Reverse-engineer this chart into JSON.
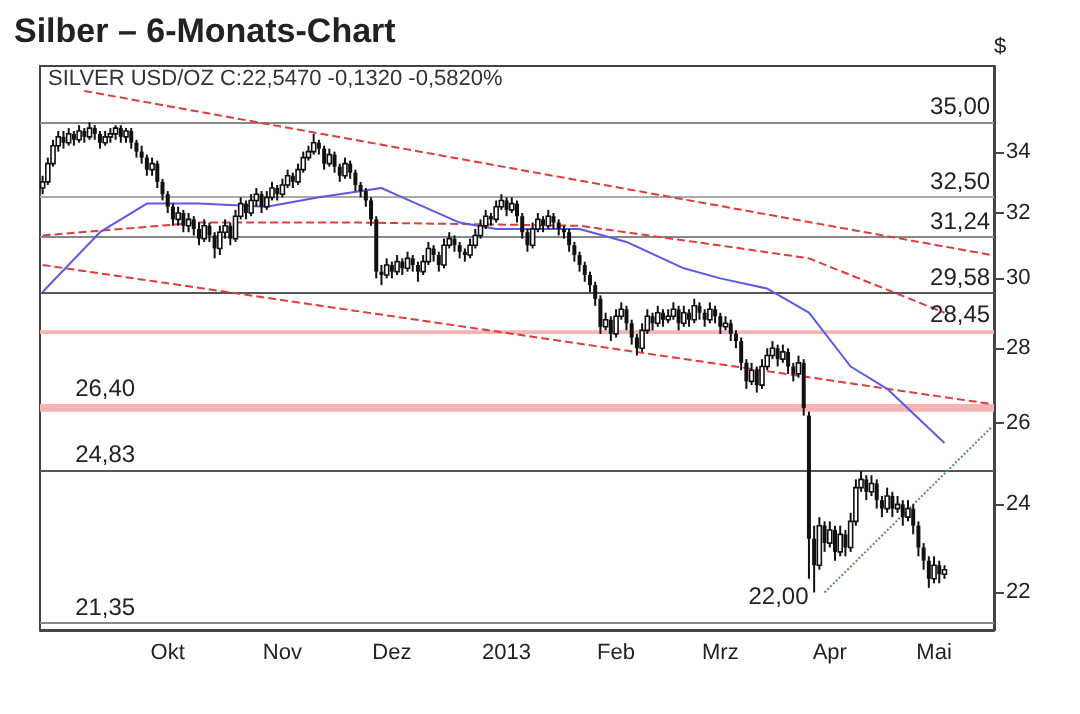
{
  "chart_data": {
    "type": "candlestick",
    "title": "Silber – 6-Monats-Chart",
    "subtitle": "SILVER USD/OZ C:22,5470 -0,1320 -0,5820%",
    "ylabel": "$",
    "color": "#111111",
    "log": true,
    "grid": false,
    "ylim": [
      21.2,
      37
    ],
    "yticks": [
      22,
      24,
      26,
      28,
      30,
      32,
      34
    ],
    "categories": [
      null,
      null,
      null,
      null,
      null,
      null,
      null,
      null,
      null,
      null,
      null,
      null,
      null,
      null,
      null,
      null,
      null,
      null,
      null,
      null,
      null,
      null,
      null,
      null,
      "Okt",
      null,
      null,
      null,
      null,
      null,
      null,
      null,
      null,
      null,
      null,
      null,
      null,
      null,
      null,
      null,
      null,
      null,
      null,
      null,
      null,
      null,
      "Nov",
      null,
      null,
      null,
      null,
      null,
      null,
      null,
      null,
      null,
      null,
      null,
      null,
      null,
      null,
      null,
      null,
      null,
      null,
      null,
      null,
      "Dez",
      null,
      null,
      null,
      null,
      null,
      null,
      null,
      null,
      null,
      null,
      null,
      null,
      null,
      null,
      null,
      null,
      null,
      null,
      null,
      null,
      null,
      "2013",
      null,
      null,
      null,
      null,
      null,
      null,
      null,
      null,
      null,
      null,
      null,
      null,
      null,
      null,
      null,
      null,
      null,
      null,
      null,
      null,
      "Feb",
      null,
      null,
      null,
      null,
      null,
      null,
      null,
      null,
      null,
      null,
      null,
      null,
      null,
      null,
      null,
      null,
      null,
      null,
      null,
      "Mrz",
      null,
      null,
      null,
      null,
      null,
      null,
      null,
      null,
      null,
      null,
      null,
      null,
      null,
      null,
      null,
      null,
      null,
      null,
      null,
      null,
      "Apr",
      null,
      null,
      null,
      null,
      null,
      null,
      null,
      null,
      null,
      null,
      null,
      null,
      null,
      null,
      null,
      null,
      null,
      null,
      null,
      "Mai",
      null,
      null,
      null,
      null,
      null,
      null,
      null,
      null,
      null,
      null,
      null
    ],
    "ohlc": [
      [
        32.8,
        33.2,
        32.6,
        33.0
      ],
      [
        33.0,
        33.8,
        32.9,
        33.6
      ],
      [
        33.6,
        34.4,
        33.5,
        34.2
      ],
      [
        34.2,
        34.7,
        34.0,
        34.5
      ],
      [
        34.5,
        34.7,
        34.1,
        34.3
      ],
      [
        34.3,
        34.8,
        34.2,
        34.6
      ],
      [
        34.6,
        34.7,
        34.2,
        34.4
      ],
      [
        34.4,
        34.9,
        34.3,
        34.7
      ],
      [
        34.7,
        34.8,
        34.3,
        34.5
      ],
      [
        34.5,
        35.0,
        34.4,
        34.8
      ],
      [
        34.8,
        34.9,
        34.4,
        34.6
      ],
      [
        34.6,
        34.7,
        34.1,
        34.3
      ],
      [
        34.3,
        34.7,
        34.2,
        34.5
      ],
      [
        34.5,
        34.8,
        34.3,
        34.6
      ],
      [
        34.6,
        34.9,
        34.4,
        34.8
      ],
      [
        34.8,
        34.9,
        34.3,
        34.5
      ],
      [
        34.5,
        34.8,
        34.3,
        34.7
      ],
      [
        34.7,
        34.8,
        34.1,
        34.3
      ],
      [
        34.3,
        34.4,
        33.8,
        34.0
      ],
      [
        34.0,
        34.2,
        33.6,
        33.8
      ],
      [
        33.8,
        33.9,
        33.2,
        33.4
      ],
      [
        33.4,
        33.8,
        33.2,
        33.6
      ],
      [
        33.6,
        33.7,
        32.8,
        33.0
      ],
      [
        33.0,
        33.1,
        32.4,
        32.6
      ],
      [
        32.6,
        32.7,
        32.0,
        32.2
      ],
      [
        32.2,
        32.3,
        31.6,
        31.8
      ],
      [
        31.8,
        32.2,
        31.6,
        32.0
      ],
      [
        32.0,
        32.1,
        31.4,
        31.6
      ],
      [
        31.6,
        32.0,
        31.4,
        31.8
      ],
      [
        31.8,
        31.9,
        31.3,
        31.5
      ],
      [
        31.5,
        31.7,
        31.0,
        31.2
      ],
      [
        31.2,
        31.8,
        31.1,
        31.6
      ],
      [
        31.6,
        31.7,
        31.1,
        31.3
      ],
      [
        31.3,
        31.4,
        30.6,
        30.9
      ],
      [
        30.9,
        31.6,
        30.7,
        31.4
      ],
      [
        31.4,
        31.8,
        31.2,
        31.6
      ],
      [
        31.6,
        31.7,
        31.0,
        31.2
      ],
      [
        31.2,
        32.1,
        31.1,
        31.9
      ],
      [
        31.9,
        32.5,
        31.8,
        32.3
      ],
      [
        32.3,
        32.4,
        31.8,
        32.0
      ],
      [
        32.0,
        32.6,
        31.9,
        32.4
      ],
      [
        32.4,
        32.8,
        32.2,
        32.6
      ],
      [
        32.6,
        32.7,
        32.0,
        32.2
      ],
      [
        32.2,
        32.7,
        32.1,
        32.5
      ],
      [
        32.5,
        33.0,
        32.4,
        32.8
      ],
      [
        32.8,
        32.9,
        32.4,
        32.6
      ],
      [
        32.6,
        33.1,
        32.5,
        32.9
      ],
      [
        32.9,
        33.4,
        32.8,
        33.2
      ],
      [
        33.2,
        33.3,
        32.8,
        33.0
      ],
      [
        33.0,
        33.6,
        32.9,
        33.4
      ],
      [
        33.4,
        34.0,
        33.3,
        33.8
      ],
      [
        33.8,
        34.2,
        33.7,
        34.0
      ],
      [
        34.0,
        34.6,
        33.9,
        34.3
      ],
      [
        34.3,
        34.4,
        33.9,
        34.1
      ],
      [
        34.1,
        34.2,
        33.4,
        33.6
      ],
      [
        33.6,
        34.1,
        33.5,
        33.9
      ],
      [
        33.9,
        34.0,
        33.3,
        33.5
      ],
      [
        33.5,
        33.6,
        33.0,
        33.2
      ],
      [
        33.2,
        33.8,
        33.1,
        33.6
      ],
      [
        33.6,
        33.7,
        33.1,
        33.3
      ],
      [
        33.3,
        33.4,
        32.7,
        32.9
      ],
      [
        32.9,
        33.0,
        32.5,
        32.7
      ],
      [
        32.7,
        32.8,
        32.2,
        32.4
      ],
      [
        32.4,
        32.5,
        31.6,
        31.8
      ],
      [
        31.8,
        31.9,
        30.0,
        30.2
      ],
      [
        30.2,
        30.4,
        29.8,
        30.1
      ],
      [
        30.1,
        30.6,
        30.0,
        30.4
      ],
      [
        30.4,
        30.5,
        30.0,
        30.2
      ],
      [
        30.2,
        30.7,
        30.1,
        30.5
      ],
      [
        30.5,
        30.6,
        30.1,
        30.3
      ],
      [
        30.3,
        30.8,
        30.2,
        30.6
      ],
      [
        30.6,
        30.7,
        30.2,
        30.4
      ],
      [
        30.4,
        30.5,
        29.9,
        30.2
      ],
      [
        30.2,
        30.7,
        30.1,
        30.5
      ],
      [
        30.5,
        31.1,
        30.4,
        30.9
      ],
      [
        30.9,
        31.0,
        30.5,
        30.7
      ],
      [
        30.7,
        30.8,
        30.2,
        30.4
      ],
      [
        30.4,
        31.2,
        30.3,
        31.0
      ],
      [
        31.0,
        31.4,
        30.9,
        31.2
      ],
      [
        31.2,
        31.3,
        30.8,
        31.0
      ],
      [
        31.0,
        31.1,
        30.6,
        30.8
      ],
      [
        30.8,
        30.9,
        30.5,
        30.7
      ],
      [
        30.7,
        31.2,
        30.6,
        31.0
      ],
      [
        31.0,
        31.5,
        30.9,
        31.3
      ],
      [
        31.3,
        31.8,
        31.2,
        31.6
      ],
      [
        31.6,
        32.1,
        31.5,
        31.9
      ],
      [
        31.9,
        32.0,
        31.6,
        31.8
      ],
      [
        31.8,
        32.4,
        31.7,
        32.2
      ],
      [
        32.2,
        32.6,
        32.1,
        32.4
      ],
      [
        32.4,
        32.5,
        31.9,
        32.1
      ],
      [
        32.1,
        32.5,
        32.0,
        32.3
      ],
      [
        32.3,
        32.4,
        31.7,
        31.9
      ],
      [
        31.9,
        32.0,
        31.2,
        31.4
      ],
      [
        31.4,
        31.5,
        30.8,
        31.0
      ],
      [
        31.0,
        31.7,
        30.9,
        31.5
      ],
      [
        31.5,
        32.0,
        31.4,
        31.8
      ],
      [
        31.8,
        31.9,
        31.4,
        31.6
      ],
      [
        31.6,
        32.1,
        31.5,
        31.9
      ],
      [
        31.9,
        32.0,
        31.5,
        31.7
      ],
      [
        31.7,
        31.8,
        31.3,
        31.5
      ],
      [
        31.5,
        31.6,
        31.2,
        31.4
      ],
      [
        31.4,
        31.5,
        30.8,
        31.0
      ],
      [
        31.0,
        31.1,
        30.5,
        30.7
      ],
      [
        30.7,
        30.8,
        30.2,
        30.4
      ],
      [
        30.4,
        30.5,
        29.9,
        30.1
      ],
      [
        30.1,
        30.2,
        29.6,
        29.8
      ],
      [
        29.8,
        29.9,
        29.2,
        29.4
      ],
      [
        29.4,
        29.5,
        28.4,
        28.6
      ],
      [
        28.6,
        29.0,
        28.5,
        28.8
      ],
      [
        28.8,
        28.9,
        28.2,
        28.4
      ],
      [
        28.4,
        29.1,
        28.3,
        28.9
      ],
      [
        28.9,
        29.3,
        28.8,
        29.1
      ],
      [
        29.1,
        29.2,
        28.5,
        28.7
      ],
      [
        28.7,
        28.8,
        28.1,
        28.3
      ],
      [
        28.3,
        28.4,
        27.8,
        28.0
      ],
      [
        28.0,
        28.7,
        27.9,
        28.5
      ],
      [
        28.5,
        29.1,
        28.4,
        28.9
      ],
      [
        28.9,
        29.0,
        28.5,
        28.7
      ],
      [
        28.7,
        29.2,
        28.6,
        29.0
      ],
      [
        29.0,
        29.1,
        28.6,
        28.8
      ],
      [
        28.8,
        29.1,
        28.7,
        28.9
      ],
      [
        28.9,
        29.3,
        28.8,
        29.1
      ],
      [
        29.1,
        29.2,
        28.5,
        28.7
      ],
      [
        28.7,
        29.2,
        28.6,
        29.0
      ],
      [
        29.0,
        29.1,
        28.6,
        28.8
      ],
      [
        28.8,
        29.4,
        28.7,
        29.2
      ],
      [
        29.2,
        29.3,
        28.8,
        29.0
      ],
      [
        29.0,
        29.1,
        28.6,
        28.8
      ],
      [
        28.8,
        29.3,
        28.7,
        29.1
      ],
      [
        29.1,
        29.2,
        28.7,
        28.9
      ],
      [
        28.9,
        29.0,
        28.4,
        28.6
      ],
      [
        28.6,
        28.9,
        28.5,
        28.7
      ],
      [
        28.7,
        28.8,
        28.2,
        28.4
      ],
      [
        28.4,
        28.5,
        28.0,
        28.2
      ],
      [
        28.2,
        28.3,
        27.4,
        27.6
      ],
      [
        27.6,
        27.7,
        26.9,
        27.1
      ],
      [
        27.1,
        27.6,
        27.0,
        27.4
      ],
      [
        27.4,
        27.5,
        26.8,
        27.0
      ],
      [
        27.0,
        27.7,
        26.9,
        27.5
      ],
      [
        27.5,
        28.0,
        27.4,
        27.8
      ],
      [
        27.8,
        28.2,
        27.7,
        28.0
      ],
      [
        28.0,
        28.1,
        27.5,
        27.7
      ],
      [
        27.7,
        28.1,
        27.6,
        27.9
      ],
      [
        27.9,
        28.0,
        27.3,
        27.5
      ],
      [
        27.5,
        27.6,
        27.1,
        27.3
      ],
      [
        27.3,
        27.8,
        27.2,
        27.6
      ],
      [
        27.6,
        27.7,
        26.2,
        26.4
      ],
      [
        26.2,
        26.3,
        22.3,
        23.2
      ],
      [
        23.2,
        23.5,
        22.0,
        22.6
      ],
      [
        22.6,
        23.7,
        22.5,
        23.5
      ],
      [
        23.5,
        23.6,
        22.9,
        23.1
      ],
      [
        23.1,
        23.6,
        23.0,
        23.4
      ],
      [
        23.4,
        23.5,
        22.7,
        22.9
      ],
      [
        22.9,
        23.5,
        22.8,
        23.3
      ],
      [
        23.3,
        23.4,
        22.8,
        23.0
      ],
      [
        23.0,
        23.8,
        22.9,
        23.6
      ],
      [
        23.6,
        24.6,
        23.5,
        24.4
      ],
      [
        24.4,
        24.8,
        24.3,
        24.6
      ],
      [
        24.6,
        24.7,
        24.1,
        24.3
      ],
      [
        24.3,
        24.7,
        24.2,
        24.5
      ],
      [
        24.5,
        24.6,
        23.9,
        24.1
      ],
      [
        24.1,
        24.2,
        23.7,
        23.9
      ],
      [
        23.9,
        24.4,
        23.8,
        24.2
      ],
      [
        24.2,
        24.3,
        23.7,
        23.9
      ],
      [
        23.9,
        24.2,
        23.8,
        24.0
      ],
      [
        24.0,
        24.1,
        23.5,
        23.7
      ],
      [
        23.7,
        24.1,
        23.6,
        23.9
      ],
      [
        23.9,
        24.0,
        23.3,
        23.5
      ],
      [
        23.5,
        23.6,
        22.8,
        23.0
      ],
      [
        23.0,
        23.1,
        22.5,
        22.7
      ],
      [
        22.7,
        22.8,
        22.1,
        22.3
      ],
      [
        22.3,
        22.8,
        22.2,
        22.6
      ],
      [
        22.6,
        22.7,
        22.2,
        22.4
      ],
      [
        22.4,
        22.6,
        22.3,
        22.5
      ],
      null,
      null,
      null,
      null,
      null,
      null,
      null,
      null,
      null
    ],
    "series": [
      {
        "type": "line",
        "color": "#e03c3c",
        "line_style": "dashed",
        "values": [
          null,
          null,
          null,
          null,
          null,
          null,
          null,
          null,
          36.1,
          null,
          null,
          null,
          null,
          null,
          null,
          null,
          null,
          null,
          null,
          null,
          null,
          null,
          null,
          null,
          null,
          null,
          null,
          null,
          null,
          null,
          null,
          null,
          null,
          null,
          null,
          null,
          null,
          null,
          null,
          null,
          null,
          null,
          null,
          null,
          null,
          null,
          null,
          null,
          null,
          null,
          null,
          null,
          null,
          null,
          null,
          null,
          null,
          null,
          null,
          null,
          null,
          null,
          null,
          null,
          null,
          null,
          null,
          null,
          null,
          null,
          null,
          null,
          null,
          null,
          null,
          null,
          null,
          null,
          null,
          null,
          null,
          null,
          null,
          null,
          null,
          null,
          null,
          null,
          null,
          null,
          null,
          null,
          null,
          null,
          null,
          null,
          null,
          null,
          null,
          null,
          null,
          null,
          null,
          null,
          null,
          null,
          null,
          null,
          null,
          null,
          null,
          null,
          null,
          null,
          null,
          null,
          null,
          null,
          null,
          null,
          null,
          null,
          null,
          null,
          null,
          null,
          null,
          null,
          null,
          null,
          null,
          null,
          null,
          null,
          null,
          null,
          null,
          null,
          null,
          null,
          null,
          null,
          null,
          null,
          null,
          null,
          null,
          null,
          null,
          null,
          null,
          null,
          null,
          null,
          null,
          null,
          null,
          null,
          null,
          null,
          null,
          null,
          null,
          null,
          null,
          null,
          null,
          null,
          null,
          null,
          null,
          null,
          null,
          null,
          null,
          null,
          null,
          null,
          null,
          null,
          null,
          null,
          30.7
        ]
      },
      {
        "type": "line",
        "color": "#e03c3c",
        "line_style": "dashed",
        "values": [
          30.4,
          null,
          null,
          null,
          null,
          null,
          null,
          null,
          null,
          null,
          null,
          null,
          null,
          null,
          null,
          null,
          null,
          null,
          null,
          null,
          null,
          null,
          null,
          null,
          null,
          null,
          null,
          null,
          null,
          null,
          null,
          null,
          null,
          null,
          null,
          null,
          null,
          null,
          null,
          null,
          null,
          null,
          null,
          null,
          null,
          null,
          null,
          null,
          null,
          null,
          null,
          null,
          null,
          null,
          null,
          null,
          null,
          null,
          null,
          null,
          null,
          null,
          null,
          null,
          null,
          null,
          null,
          null,
          null,
          null,
          null,
          null,
          null,
          null,
          null,
          null,
          null,
          null,
          null,
          null,
          null,
          null,
          null,
          null,
          null,
          null,
          null,
          null,
          null,
          null,
          null,
          null,
          null,
          null,
          null,
          null,
          null,
          null,
          null,
          null,
          null,
          null,
          null,
          null,
          null,
          null,
          null,
          null,
          null,
          null,
          null,
          null,
          null,
          null,
          null,
          null,
          null,
          null,
          null,
          null,
          null,
          null,
          null,
          null,
          null,
          null,
          null,
          null,
          null,
          null,
          null,
          null,
          null,
          null,
          null,
          null,
          null,
          null,
          null,
          null,
          null,
          null,
          null,
          null,
          null,
          null,
          null,
          null,
          null,
          null,
          null,
          null,
          null,
          null,
          null,
          null,
          null,
          null,
          null,
          null,
          null,
          null,
          null,
          null,
          null,
          null,
          null,
          null,
          null,
          null,
          null,
          null,
          null,
          null,
          null,
          null,
          null,
          null,
          null,
          null,
          null,
          null,
          26.5
        ]
      },
      {
        "type": "line",
        "color": "#e03c3c",
        "line_style": "dashed",
        "values": [
          31.3,
          null,
          null,
          null,
          null,
          null,
          null,
          null,
          null,
          null,
          null,
          null,
          null,
          null,
          null,
          null,
          null,
          null,
          null,
          null,
          null,
          null,
          null,
          null,
          null,
          null,
          null,
          null,
          null,
          null,
          31.7,
          null,
          null,
          null,
          null,
          null,
          null,
          null,
          null,
          null,
          null,
          null,
          null,
          null,
          null,
          null,
          null,
          null,
          null,
          null,
          null,
          null,
          null,
          null,
          null,
          null,
          null,
          null,
          null,
          null,
          null,
          31.7,
          null,
          null,
          null,
          null,
          null,
          null,
          null,
          null,
          null,
          null,
          null,
          null,
          null,
          null,
          null,
          null,
          null,
          null,
          null,
          null,
          null,
          null,
          null,
          null,
          null,
          null,
          null,
          null,
          null,
          null,
          null,
          null,
          null,
          null,
          null,
          null,
          null,
          null,
          null,
          null,
          null,
          31.6,
          null,
          null,
          null,
          null,
          null,
          null,
          null,
          null,
          null,
          null,
          null,
          null,
          null,
          null,
          null,
          null,
          null,
          null,
          null,
          null,
          null,
          null,
          null,
          null,
          null,
          null,
          null,
          null,
          null,
          null,
          30.9,
          null,
          null,
          null,
          null,
          null,
          null,
          null,
          null,
          null,
          null,
          null,
          null,
          30.6,
          null,
          null,
          null,
          null,
          null,
          null,
          null,
          null,
          null,
          null,
          null,
          null,
          null,
          null,
          null,
          null,
          null,
          null,
          null,
          null,
          null,
          null,
          null,
          null,
          null,
          29.0,
          null,
          null,
          null,
          null,
          null,
          null,
          null,
          null,
          null
        ]
      },
      {
        "type": "line",
        "color": "#5a5ae6",
        "line_style": "solid",
        "values": [
          29.6,
          null,
          null,
          null,
          null,
          null,
          null,
          null,
          null,
          null,
          null,
          31.4,
          null,
          null,
          null,
          null,
          null,
          null,
          null,
          null,
          32.3,
          null,
          null,
          null,
          null,
          null,
          null,
          null,
          null,
          null,
          32.3,
          null,
          null,
          null,
          null,
          null,
          null,
          null,
          null,
          null,
          null,
          null,
          null,
          32.2,
          null,
          null,
          null,
          null,
          null,
          null,
          null,
          null,
          null,
          32.5,
          null,
          null,
          null,
          null,
          null,
          null,
          null,
          null,
          null,
          null,
          null,
          32.8,
          null,
          null,
          null,
          32.5,
          null,
          null,
          null,
          null,
          null,
          null,
          null,
          null,
          null,
          null,
          31.7,
          null,
          null,
          null,
          null,
          null,
          null,
          31.5,
          null,
          null,
          null,
          null,
          null,
          null,
          null,
          null,
          null,
          null,
          null,
          null,
          null,
          null,
          null,
          31.5,
          null,
          null,
          null,
          null,
          null,
          null,
          null,
          null,
          31.1,
          null,
          null,
          null,
          null,
          null,
          null,
          null,
          null,
          null,
          null,
          30.3,
          null,
          null,
          null,
          null,
          null,
          null,
          30.0,
          null,
          null,
          null,
          null,
          null,
          null,
          null,
          null,
          29.7,
          null,
          null,
          null,
          null,
          null,
          null,
          null,
          29.0,
          null,
          null,
          null,
          null,
          null,
          null,
          null,
          27.5,
          null,
          null,
          null,
          null,
          null,
          null,
          26.9,
          null,
          null,
          null,
          null,
          null,
          null,
          null,
          null,
          null,
          null,
          25.5,
          null,
          null,
          null,
          null,
          null,
          null,
          null,
          null,
          null
        ]
      },
      {
        "type": "line",
        "color": "#4a9a4a",
        "line_style": "dotted",
        "values": [
          null,
          null,
          null,
          null,
          null,
          null,
          null,
          null,
          null,
          null,
          null,
          null,
          null,
          null,
          null,
          null,
          null,
          null,
          null,
          null,
          null,
          null,
          null,
          null,
          null,
          null,
          null,
          null,
          null,
          null,
          null,
          null,
          null,
          null,
          null,
          null,
          null,
          null,
          null,
          null,
          null,
          null,
          null,
          null,
          null,
          null,
          null,
          null,
          null,
          null,
          null,
          null,
          null,
          null,
          null,
          null,
          null,
          null,
          null,
          null,
          null,
          null,
          null,
          null,
          null,
          null,
          null,
          null,
          null,
          null,
          null,
          null,
          null,
          null,
          null,
          null,
          null,
          null,
          null,
          null,
          null,
          null,
          null,
          null,
          null,
          null,
          null,
          null,
          null,
          null,
          null,
          null,
          null,
          null,
          null,
          null,
          null,
          null,
          null,
          null,
          null,
          null,
          null,
          null,
          null,
          null,
          null,
          null,
          null,
          null,
          null,
          null,
          null,
          null,
          null,
          null,
          null,
          null,
          null,
          null,
          null,
          null,
          null,
          null,
          null,
          null,
          null,
          null,
          null,
          null,
          null,
          null,
          null,
          null,
          null,
          null,
          null,
          null,
          null,
          null,
          null,
          null,
          null,
          null,
          null,
          null,
          null,
          null,
          null,
          null,
          22.0,
          null,
          null,
          null,
          null,
          null,
          null,
          null,
          null,
          null,
          null,
          null,
          null,
          null,
          null,
          null,
          null,
          null,
          null,
          null,
          null,
          null,
          null,
          null,
          null,
          null,
          null,
          null,
          null,
          null,
          null,
          null,
          25.9
        ]
      }
    ],
    "ref_lines": [
      {
        "axis": "y",
        "value": 35,
        "label": "35,00",
        "color": "#888888"
      },
      {
        "axis": "y",
        "value": 32.5,
        "label": "32,50",
        "color": "#aaaaaa"
      },
      {
        "axis": "y",
        "value": 31.24,
        "label": "31,24",
        "color": "#888888"
      },
      {
        "axis": "y",
        "value": 29.58,
        "label": "29,58",
        "color": "#555555"
      },
      {
        "axis": "y",
        "value": 24.83,
        "label": "24,83",
        "color": "#555555"
      },
      {
        "axis": "y",
        "value": 21.35,
        "label": "21,35",
        "color": "#888888"
      }
    ],
    "bands": [
      {
        "axis": "y",
        "from": 28.4,
        "to": 28.5,
        "label": "28,45",
        "color": "#f4b4b4"
      },
      {
        "axis": "y",
        "from": 26.3,
        "to": 26.5,
        "label": "26,40",
        "color": "#f4b4b4"
      }
    ],
    "annotations": [
      "22,00"
    ]
  }
}
